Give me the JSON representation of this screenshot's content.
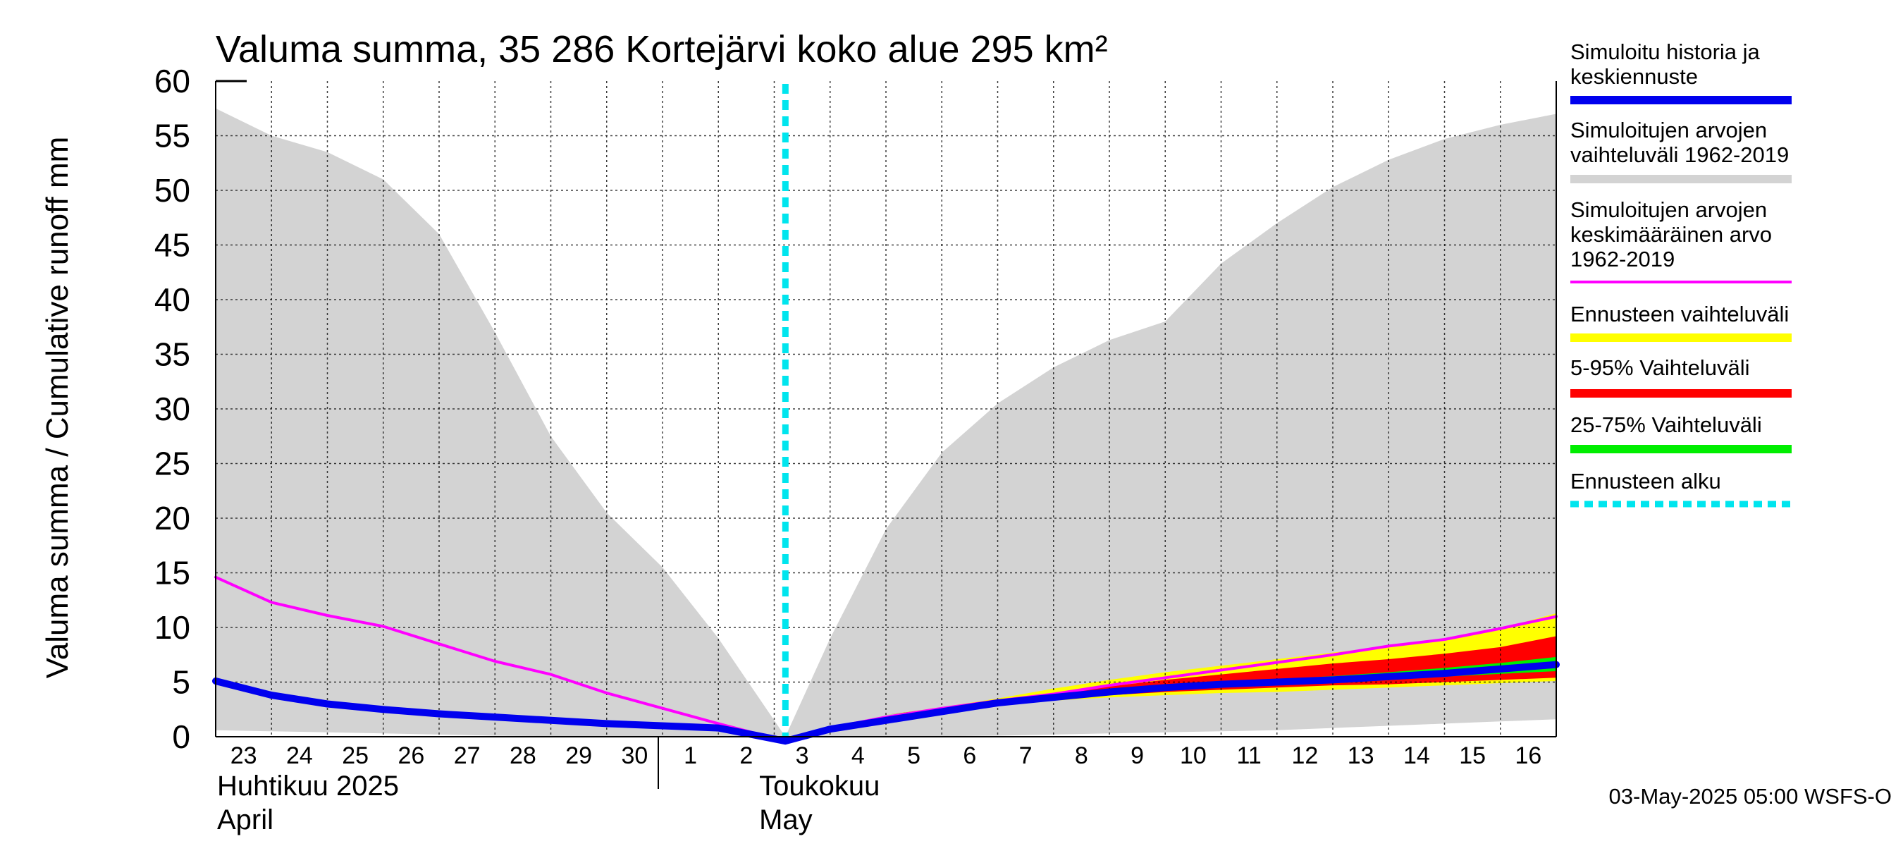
{
  "chart_data": {
    "type": "area",
    "title": "Valuma summa, 35 286 Kortejärvi koko alue 295 km²",
    "ylabel": "Valuma summa / Cumulative runoff    mm",
    "ylim": [
      0,
      60
    ],
    "yticks": [
      0,
      5,
      10,
      15,
      20,
      25,
      30,
      35,
      40,
      45,
      50,
      55,
      60
    ],
    "grid": true,
    "x_day_labels": [
      "23",
      "24",
      "25",
      "26",
      "27",
      "28",
      "29",
      "30",
      "1",
      "2",
      "3",
      "4",
      "5",
      "6",
      "7",
      "8",
      "9",
      "10",
      "11",
      "12",
      "13",
      "14",
      "15",
      "16"
    ],
    "month_labels": [
      {
        "line1": "Huhtikuu  2025",
        "line2": "April"
      },
      {
        "line1": "Toukokuu",
        "line2": "May"
      }
    ],
    "forecast_start_day": 10.2,
    "series": [
      {
        "name": "Simuloitujen arvojen vaihteluväli 1962-2019",
        "kind": "band",
        "color": "#d3d3d3",
        "x": [
          0,
          1,
          2,
          3,
          4,
          5,
          6,
          7,
          8,
          9,
          10.2,
          11,
          12,
          13,
          14,
          15,
          16,
          17,
          18,
          19,
          20,
          21,
          22,
          23,
          24
        ],
        "upper": [
          57.5,
          55,
          53.5,
          51,
          46,
          37,
          27.5,
          20.5,
          15.5,
          9,
          0,
          9,
          19,
          26,
          30.5,
          33.8,
          36.3,
          38,
          43.3,
          47,
          50.3,
          52.8,
          54.7,
          56,
          57
        ],
        "lower": [
          0.6,
          0.5,
          0.4,
          0.3,
          0.2,
          0.1,
          0.05,
          0,
          0,
          0,
          0,
          0,
          0,
          0.05,
          0.1,
          0.2,
          0.3,
          0.4,
          0.5,
          0.6,
          0.8,
          1,
          1.2,
          1.4,
          1.6
        ]
      },
      {
        "name": "Ennusteen vaihteluväli",
        "kind": "band",
        "color": "#ffff00",
        "x": [
          10.2,
          11,
          12,
          13,
          14,
          15,
          16,
          17,
          18,
          19,
          20,
          21,
          22,
          23,
          24
        ],
        "upper": [
          0,
          1,
          2,
          2.7,
          3.5,
          4.4,
          5.2,
          5.9,
          6.5,
          7.1,
          7.7,
          8.3,
          8.9,
          9.9,
          11.3
        ],
        "lower": [
          0,
          1,
          2,
          2.6,
          3,
          3.3,
          3.6,
          3.8,
          4,
          4.1,
          4.3,
          4.5,
          4.7,
          4.9,
          5.1
        ]
      },
      {
        "name": "5-95% Vaihteluväli",
        "kind": "band",
        "color": "#ff0000",
        "x": [
          10.2,
          11,
          12,
          13,
          14,
          15,
          16,
          17,
          18,
          19,
          20,
          21,
          22,
          23,
          24
        ],
        "upper": [
          0,
          1,
          2,
          2.65,
          3.3,
          4,
          4.6,
          5.2,
          5.7,
          6.2,
          6.7,
          7.1,
          7.6,
          8.2,
          9.2
        ],
        "lower": [
          0,
          1,
          2,
          2.6,
          3.1,
          3.5,
          3.8,
          4.1,
          4.3,
          4.5,
          4.7,
          4.8,
          5,
          5.2,
          5.4
        ]
      },
      {
        "name": "25-75% Vaihteluväli",
        "kind": "band",
        "color": "#00ee00",
        "x": [
          10.2,
          11,
          12,
          13,
          14,
          15,
          16,
          17,
          18,
          19,
          20,
          21,
          22,
          23,
          24
        ],
        "upper": [
          0,
          1,
          2,
          2.62,
          3.15,
          3.7,
          4.15,
          4.6,
          4.9,
          5.25,
          5.55,
          5.9,
          6.3,
          6.75,
          7.3
        ],
        "lower": [
          0,
          1,
          2,
          2.58,
          3.05,
          3.55,
          3.95,
          4.3,
          4.55,
          4.8,
          5,
          5.25,
          5.5,
          5.75,
          6
        ]
      },
      {
        "name": "Simuloitujen arvojen keskimääräinen arvo 1962-2019",
        "kind": "line",
        "color": "#ff00ff",
        "x": [
          0,
          1,
          2,
          3,
          4,
          5,
          6,
          7,
          8,
          9,
          10.2,
          11,
          12,
          13,
          14,
          15,
          16,
          17,
          18,
          19,
          20,
          21,
          22,
          23,
          24
        ],
        "values": [
          14.6,
          12.3,
          11.1,
          10.1,
          8.5,
          6.9,
          5.7,
          4,
          2.6,
          1.2,
          -0.4,
          0.8,
          1.8,
          2.6,
          3.3,
          3.9,
          4.7,
          5.4,
          6.1,
          6.8,
          7.5,
          8.3,
          8.9,
          9.9,
          11
        ]
      },
      {
        "name": "Simuloitu historia ja keskiennuste",
        "kind": "line",
        "color": "#0000ee",
        "x": [
          0,
          1,
          2,
          3,
          4,
          5,
          6,
          7,
          8,
          9,
          10.2,
          11,
          12,
          13,
          14,
          15,
          16,
          17,
          18,
          19,
          20,
          21,
          22,
          23,
          24
        ],
        "values": [
          5.1,
          3.8,
          3,
          2.5,
          2.1,
          1.8,
          1.5,
          1.2,
          1,
          0.8,
          -0.4,
          0.7,
          1.5,
          2.3,
          3.1,
          3.6,
          4.1,
          4.5,
          4.8,
          5,
          5.2,
          5.5,
          5.8,
          6.2,
          6.6
        ]
      }
    ]
  },
  "legend": {
    "items": [
      {
        "label_lines": [
          "Simuloitu historia ja",
          "keskiennuste"
        ],
        "color": "#0000ee",
        "style": "solid"
      },
      {
        "label_lines": [
          "Simuloitujen arvojen",
          "vaihteluväli 1962-2019"
        ],
        "color": "#d3d3d3",
        "style": "solid"
      },
      {
        "label_lines": [
          "Simuloitujen arvojen",
          "keskimääräinen arvo",
          "   1962-2019"
        ],
        "color": "#ff00ff",
        "style": "thin"
      },
      {
        "label_lines": [
          "Ennusteen vaihteluväli"
        ],
        "color": "#ffff00",
        "style": "solid"
      },
      {
        "label_lines": [
          "5-95% Vaihteluväli"
        ],
        "color": "#ff0000",
        "style": "solid"
      },
      {
        "label_lines": [
          "25-75% Vaihteluväli"
        ],
        "color": "#00ee00",
        "style": "solid"
      },
      {
        "label_lines": [
          "Ennusteen alku"
        ],
        "color": "#00e5ee",
        "style": "dashed"
      }
    ]
  },
  "footer": {
    "timestamp": "03-May-2025 05:00 WSFS-O"
  }
}
